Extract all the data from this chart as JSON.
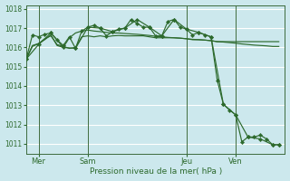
{
  "background_color": "#cce8ed",
  "grid_color": "#ffffff",
  "line_color": "#2d6a2d",
  "xlabel": "Pression niveau de la mer( hPa )",
  "ylim": [
    1010.5,
    1018.2
  ],
  "yticks": [
    1011,
    1012,
    1013,
    1014,
    1015,
    1016,
    1017,
    1018
  ],
  "xtick_labels": [
    "Mer",
    "Sam",
    "Jeu",
    "Ven"
  ],
  "xtick_positions": [
    2,
    10,
    26,
    34
  ],
  "vline_positions": [
    2,
    10,
    26,
    34
  ],
  "xlim": [
    0,
    42
  ],
  "s1_x": [
    0,
    1,
    2,
    3,
    4,
    5,
    6,
    7,
    8,
    9,
    10,
    11,
    12,
    13,
    14,
    15,
    16,
    17,
    18,
    19,
    20,
    21,
    22,
    23,
    24,
    25,
    26,
    27,
    28,
    29,
    30,
    31,
    32,
    33,
    34,
    35,
    36,
    37,
    38,
    39,
    40,
    41
  ],
  "s1_y": [
    1015.4,
    1016.1,
    1016.2,
    1016.45,
    1016.6,
    1016.15,
    1016.05,
    1015.95,
    1016.0,
    1016.55,
    1016.6,
    1016.55,
    1016.6,
    1016.55,
    1016.6,
    1016.62,
    1016.6,
    1016.6,
    1016.6,
    1016.6,
    1016.55,
    1016.5,
    1016.5,
    1016.5,
    1016.5,
    1016.48,
    1016.45,
    1016.4,
    1016.4,
    1016.38,
    1016.35,
    1016.3,
    1016.3,
    1016.3,
    1016.3,
    1016.3,
    1016.3,
    1016.3,
    1016.3,
    1016.3,
    1016.3,
    1016.3
  ],
  "s2_x": [
    0,
    1,
    2,
    3,
    4,
    5,
    6,
    7,
    8,
    9,
    10,
    11,
    12,
    13,
    14,
    15,
    16,
    17,
    18,
    19,
    20,
    21,
    22,
    23,
    24,
    25,
    26,
    27,
    28,
    29,
    30,
    31,
    32,
    33,
    34,
    35,
    36,
    37,
    38,
    39,
    40,
    41
  ],
  "s2_y": [
    1015.4,
    1016.05,
    1016.2,
    1016.4,
    1016.65,
    1016.1,
    1016.0,
    1016.5,
    1016.75,
    1016.85,
    1016.9,
    1016.85,
    1016.82,
    1016.78,
    1016.75,
    1016.75,
    1016.72,
    1016.7,
    1016.68,
    1016.65,
    1016.62,
    1016.58,
    1016.55,
    1016.52,
    1016.5,
    1016.48,
    1016.45,
    1016.42,
    1016.4,
    1016.38,
    1016.35,
    1016.3,
    1016.28,
    1016.25,
    1016.22,
    1016.18,
    1016.15,
    1016.12,
    1016.1,
    1016.08,
    1016.05,
    1016.05
  ],
  "s3_x": [
    0,
    1,
    2,
    3,
    4,
    5,
    6,
    7,
    8,
    9,
    10,
    11,
    12,
    13,
    14,
    15,
    16,
    17,
    18,
    19,
    20,
    21,
    22,
    23,
    24,
    25,
    26,
    27,
    28,
    29,
    30,
    31,
    32,
    33,
    34,
    35,
    36,
    37,
    38,
    39,
    40,
    41
  ],
  "s3_y": [
    1015.4,
    1016.65,
    1016.55,
    1016.68,
    1016.75,
    1016.4,
    1016.1,
    1016.55,
    1015.95,
    1016.85,
    1017.05,
    1017.15,
    1017.0,
    1016.6,
    1016.82,
    1016.95,
    1017.0,
    1017.45,
    1017.25,
    1017.05,
    1017.05,
    1016.6,
    1016.6,
    1017.35,
    1017.45,
    1017.05,
    1016.95,
    1016.65,
    1016.78,
    1016.65,
    1016.55,
    1014.3,
    1013.05,
    1012.75,
    1012.5,
    1011.1,
    1011.35,
    1011.35,
    1011.45,
    1011.25,
    1010.95,
    1010.95
  ],
  "s4_x": [
    0,
    2,
    4,
    6,
    8,
    10,
    12,
    14,
    16,
    18,
    20,
    22,
    24,
    26,
    28,
    30,
    32,
    34,
    36,
    38,
    40,
    41
  ],
  "s4_y": [
    1015.4,
    1016.15,
    1016.75,
    1016.0,
    1015.95,
    1017.05,
    1017.0,
    1016.82,
    1017.0,
    1017.45,
    1017.05,
    1016.6,
    1017.45,
    1016.95,
    1016.78,
    1016.55,
    1013.05,
    1012.5,
    1011.35,
    1011.25,
    1010.95,
    1010.95
  ]
}
